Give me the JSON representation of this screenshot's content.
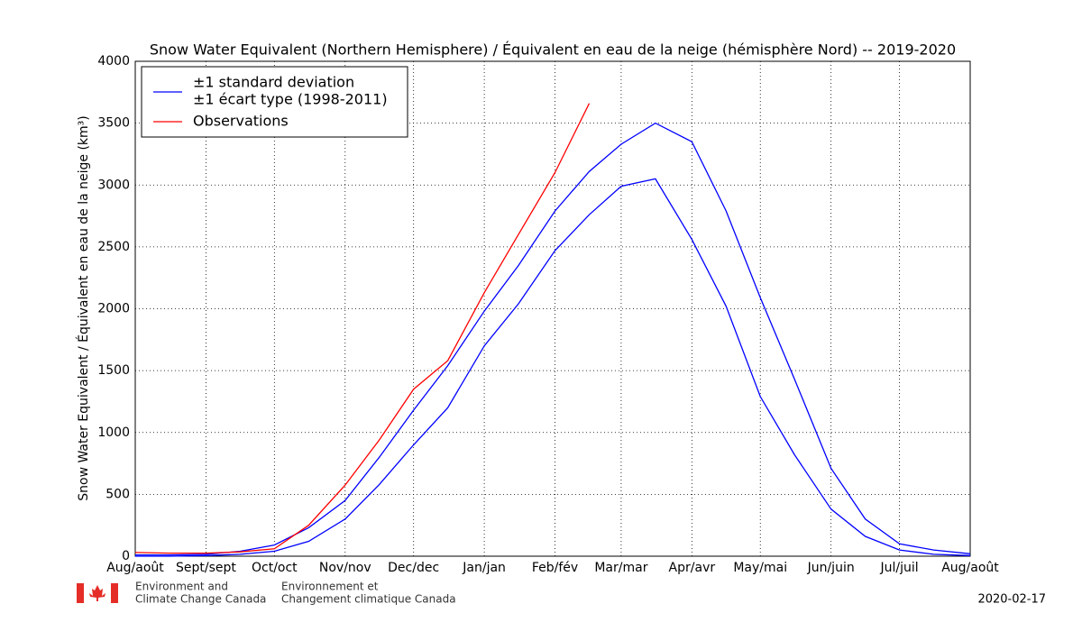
{
  "chart_data": {
    "type": "line",
    "title": "Snow Water Equivalent (Northern Hemisphere) / Équivalent en eau de la neige (hémisphère Nord) -- 2019-2020",
    "y_label": "Snow Water Equivalent / Équivalent en eau de la neige (km³)",
    "x": [
      0,
      15,
      31,
      46,
      61,
      76,
      92,
      107,
      122,
      137,
      153,
      168,
      184,
      199,
      213,
      228,
      244,
      259,
      274,
      289,
      305,
      320,
      335,
      350,
      366
    ],
    "series": [
      {
        "name": [
          "±1 standard deviation",
          "±1 écart type (1998-2011)"
        ],
        "color": "#0000ff",
        "values": [
          10,
          10,
          15,
          40,
          90,
          230,
          450,
          800,
          1180,
          1540,
          1980,
          2350,
          2790,
          3110,
          3330,
          3500,
          3350,
          2790,
          2090,
          1430,
          710,
          300,
          100,
          50,
          20
        ],
        "values_lower": [
          0,
          0,
          5,
          15,
          40,
          120,
          300,
          580,
          900,
          1200,
          1700,
          2040,
          2470,
          2760,
          2990,
          3050,
          2560,
          2020,
          1290,
          820,
          380,
          160,
          50,
          15,
          5
        ]
      },
      {
        "name": "Observations",
        "color": "#ff0000",
        "values": [
          30,
          25,
          25,
          35,
          60,
          250,
          575,
          940,
          1350,
          1580,
          2130,
          2600,
          3100,
          3660,
          null,
          null,
          null,
          null,
          null,
          null,
          null,
          null,
          null,
          null,
          null
        ]
      }
    ],
    "xlim": [
      0,
      366
    ],
    "xticks": [
      {
        "value": 0,
        "label": "Aug/août"
      },
      {
        "value": 31,
        "label": "Sept/sept"
      },
      {
        "value": 61,
        "label": "Oct/oct"
      },
      {
        "value": 92,
        "label": "Nov/nov"
      },
      {
        "value": 122,
        "label": "Dec/dec"
      },
      {
        "value": 153,
        "label": "Jan/jan"
      },
      {
        "value": 184,
        "label": "Feb/fév"
      },
      {
        "value": 213,
        "label": "Mar/mar"
      },
      {
        "value": 244,
        "label": "Apr/avr"
      },
      {
        "value": 274,
        "label": "May/mai"
      },
      {
        "value": 305,
        "label": "Jun/juin"
      },
      {
        "value": 335,
        "label": "Jul/juil"
      },
      {
        "value": 366,
        "label": "Aug/août"
      }
    ],
    "ylim": [
      0,
      4000
    ],
    "yticks": [
      0,
      500,
      1000,
      1500,
      2000,
      2500,
      3000,
      3500,
      4000
    ],
    "grid": true,
    "legend": "upper left"
  },
  "footer": {
    "agency_en": [
      "Environment and",
      "Climate Change Canada"
    ],
    "agency_fr": [
      "Environnement et",
      "Changement climatique Canada"
    ],
    "date": "2020-02-17"
  }
}
